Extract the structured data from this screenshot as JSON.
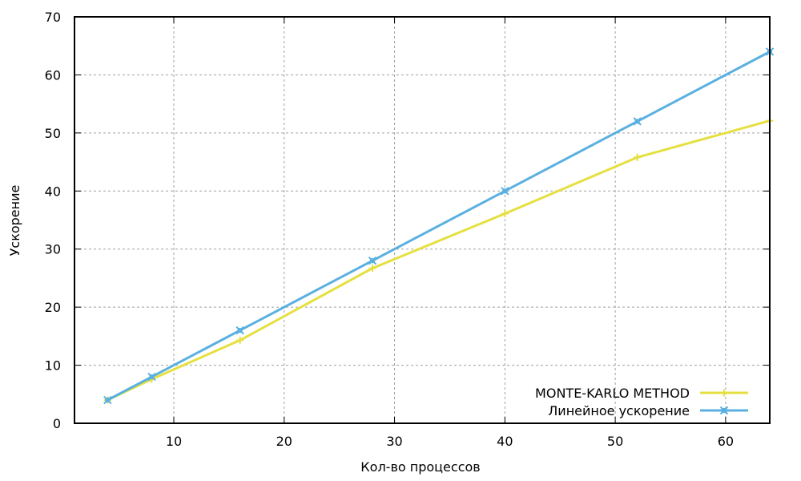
{
  "chart_data": {
    "type": "line",
    "title": "",
    "xlabel": "Кол-во процессов",
    "ylabel": "Ускорение",
    "xlim": [
      1,
      64
    ],
    "ylim": [
      0,
      70
    ],
    "xticks": [
      10,
      20,
      30,
      40,
      50,
      60
    ],
    "yticks": [
      0,
      10,
      20,
      30,
      40,
      50,
      60,
      70
    ],
    "grid": true,
    "legend_position": "bottom-right",
    "series": [
      {
        "name": "MONTE-KARLO METHOD",
        "color": "#e5e040",
        "marker": "plus",
        "x": [
          4,
          8,
          16,
          28,
          40,
          52,
          64
        ],
        "y": [
          4,
          7.6,
          14.3,
          26.7,
          36.1,
          45.8,
          52.1
        ]
      },
      {
        "name": "Линейное ускорение",
        "color": "#5ab0e0",
        "marker": "cross-box",
        "x": [
          4,
          8,
          16,
          28,
          40,
          52,
          64
        ],
        "y": [
          4,
          8,
          16,
          28,
          40,
          52,
          64
        ]
      }
    ]
  }
}
